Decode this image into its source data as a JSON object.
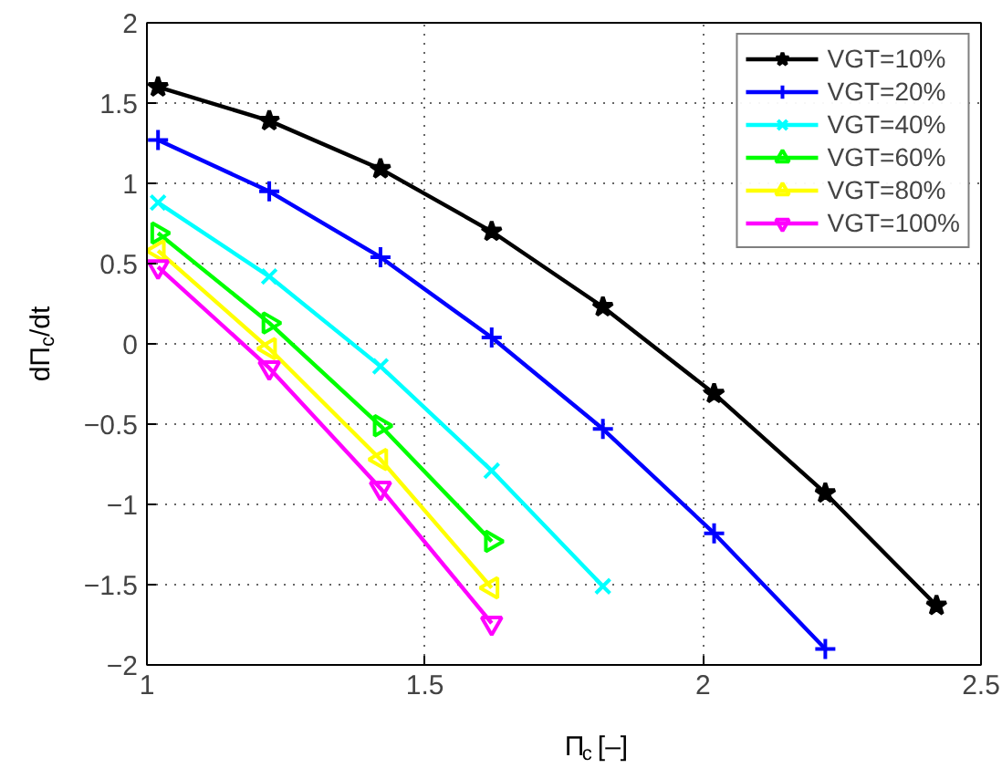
{
  "chart_data": {
    "type": "line",
    "xlabel": "Π$_{c}$ [–]",
    "ylabel": "dΠ$_{c}$/dt",
    "xlim": [
      1,
      2.5
    ],
    "ylim": [
      -2,
      2
    ],
    "xticks": [
      1,
      1.5,
      2,
      2.5
    ],
    "yticks": [
      {
        "value": -2,
        "label": "−2"
      },
      {
        "value": -1.5,
        "label": "−1.5"
      },
      {
        "value": -1,
        "label": "−1"
      },
      {
        "value": -0.5,
        "label": "−0.5"
      },
      0,
      0.5,
      1,
      1.5,
      2
    ],
    "grid": true,
    "legend": "top right",
    "line_style": "solid",
    "series": [
      {
        "name": "VGT=10%",
        "color": "#000000",
        "marker": "star",
        "x": [
          1.02,
          1.22,
          1.42,
          1.62,
          1.82,
          2.02,
          2.22,
          2.42
        ],
        "values": [
          1.6,
          1.39,
          1.09,
          0.7,
          0.23,
          -0.31,
          -0.93,
          -1.63
        ]
      },
      {
        "name": "VGT=20%",
        "color": "#0000ff",
        "marker": "cross",
        "x": [
          1.02,
          1.22,
          1.42,
          1.62,
          1.82,
          2.02,
          2.22
        ],
        "values": [
          1.27,
          0.95,
          0.54,
          0.04,
          -0.53,
          -1.18,
          -1.9
        ]
      },
      {
        "name": "VGT=40%",
        "color": "#00ffff",
        "marker": "x",
        "x": [
          1.02,
          1.22,
          1.42,
          1.62,
          1.82
        ],
        "values": [
          0.88,
          0.42,
          -0.14,
          -0.79,
          -1.51
        ]
      },
      {
        "name": "VGT=60%",
        "color": "#00ff00",
        "marker": "triangle_right",
        "x": [
          1.02,
          1.22,
          1.42,
          1.62
        ],
        "values": [
          0.69,
          0.13,
          -0.51,
          -1.23
        ]
      },
      {
        "name": "VGT=80%",
        "color": "#ffff00",
        "marker": "triangle_left",
        "x": [
          1.02,
          1.22,
          1.42,
          1.62
        ],
        "values": [
          0.58,
          -0.03,
          -0.72,
          -1.52
        ]
      },
      {
        "name": "VGT=100%",
        "color": "#ff00ff",
        "marker": "triangle_down",
        "x": [
          1.02,
          1.22,
          1.42,
          1.62
        ],
        "values": [
          0.48,
          -0.15,
          -0.9,
          -1.74
        ]
      }
    ]
  }
}
